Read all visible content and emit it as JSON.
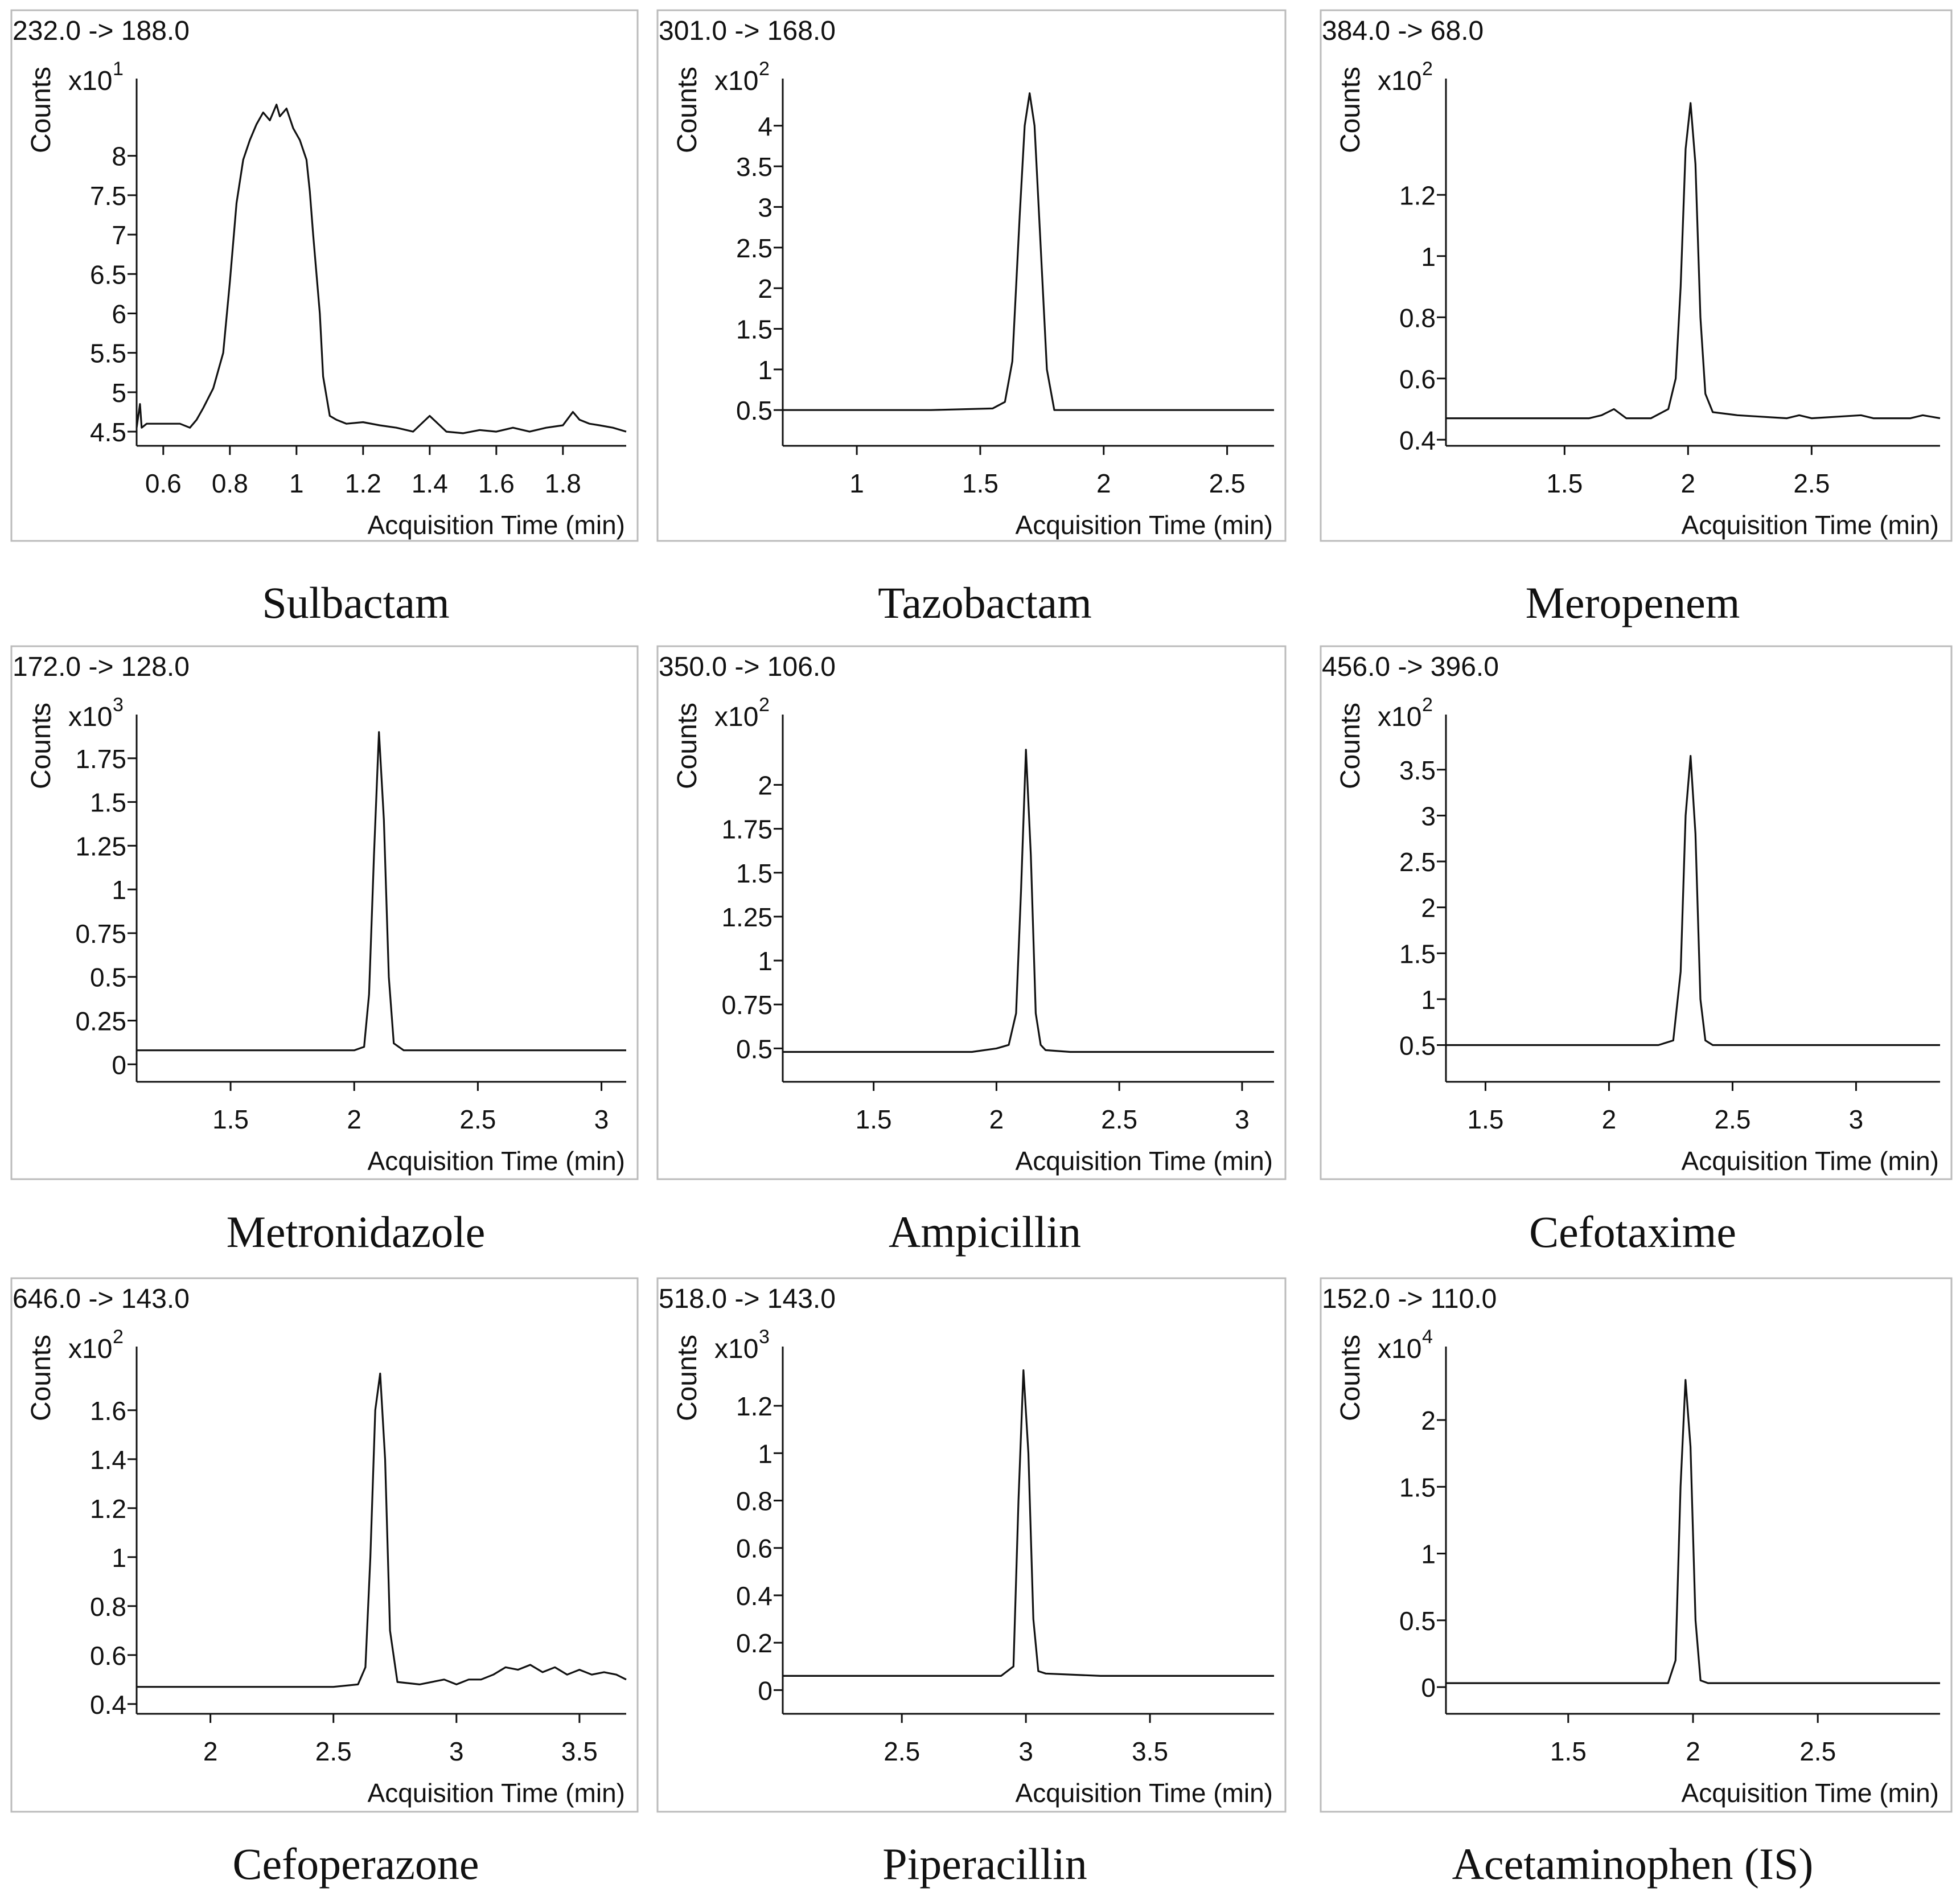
{
  "colors": {
    "line": "#111111",
    "frame": "#bbbbbb",
    "background": "#ffffff"
  },
  "chart_data": [
    {
      "type": "line",
      "name": "Sulbactam",
      "transition": "232.0 -> 188.0",
      "ylabel": "Counts",
      "xlabel": "Acquisition Time (min)",
      "scale_base": "x10",
      "scale_exp": "1",
      "xlim": [
        0.52,
        1.99
      ],
      "ylim": [
        4.32,
        8.98
      ],
      "xticks": [
        0.6,
        0.8,
        1,
        1.2,
        1.4,
        1.6,
        1.8
      ],
      "xtick_labels": [
        "0.6",
        "0.8",
        "1",
        "1.2",
        "1.4",
        "1.6",
        "1.8"
      ],
      "yticks": [
        4.5,
        5,
        5.5,
        6,
        6.5,
        7,
        7.5,
        8
      ],
      "ytick_labels": [
        "4.5",
        "5",
        "5.5",
        "6",
        "6.5",
        "7",
        "7.5",
        "8"
      ],
      "x": [
        0.52,
        0.53,
        0.535,
        0.55,
        0.6,
        0.65,
        0.68,
        0.7,
        0.72,
        0.75,
        0.78,
        0.8,
        0.82,
        0.84,
        0.86,
        0.88,
        0.9,
        0.92,
        0.94,
        0.95,
        0.97,
        0.99,
        1.01,
        1.03,
        1.04,
        1.05,
        1.07,
        1.08,
        1.1,
        1.12,
        1.15,
        1.2,
        1.25,
        1.3,
        1.35,
        1.4,
        1.45,
        1.5,
        1.55,
        1.6,
        1.65,
        1.7,
        1.75,
        1.8,
        1.83,
        1.85,
        1.88,
        1.91,
        1.95,
        1.99
      ],
      "y": [
        4.55,
        4.85,
        4.55,
        4.6,
        4.6,
        4.6,
        4.55,
        4.65,
        4.8,
        5.05,
        5.5,
        6.4,
        7.4,
        7.95,
        8.2,
        8.4,
        8.55,
        8.45,
        8.65,
        8.5,
        8.6,
        8.35,
        8.2,
        7.95,
        7.55,
        7.0,
        6.0,
        5.2,
        4.7,
        4.65,
        4.6,
        4.62,
        4.58,
        4.55,
        4.5,
        4.7,
        4.5,
        4.48,
        4.52,
        4.5,
        4.55,
        4.5,
        4.55,
        4.58,
        4.75,
        4.65,
        4.6,
        4.58,
        4.55,
        4.5
      ]
    },
    {
      "type": "line",
      "name": "Tazobactam",
      "transition": "301.0 -> 168.0",
      "ylabel": "Counts",
      "xlabel": "Acquisition Time (min)",
      "scale_base": "x10",
      "scale_exp": "2",
      "xlim": [
        0.7,
        2.69
      ],
      "ylim": [
        0.06,
        4.58
      ],
      "xticks": [
        1,
        1.5,
        2,
        2.5
      ],
      "xtick_labels": [
        "1",
        "1.5",
        "2",
        "2.5"
      ],
      "yticks": [
        0.5,
        1,
        1.5,
        2,
        2.5,
        3,
        3.5,
        4
      ],
      "ytick_labels": [
        "0.5",
        "1",
        "1.5",
        "2",
        "2.5",
        "3",
        "3.5",
        "4"
      ],
      "x": [
        0.7,
        1.0,
        1.3,
        1.55,
        1.6,
        1.63,
        1.66,
        1.68,
        1.7,
        1.72,
        1.74,
        1.77,
        1.8,
        2.0,
        2.69
      ],
      "y": [
        0.5,
        0.5,
        0.5,
        0.52,
        0.6,
        1.1,
        2.9,
        4.0,
        4.4,
        4.0,
        2.8,
        1.0,
        0.5,
        0.5,
        0.5
      ]
    },
    {
      "type": "line",
      "name": "Meropenem",
      "transition": "384.0 -> 68.0",
      "ylabel": "Counts",
      "xlabel": "Acquisition Time (min)",
      "scale_base": "x10",
      "scale_exp": "2",
      "xlim": [
        1.02,
        3.02
      ],
      "ylim": [
        0.38,
        1.58
      ],
      "xticks": [
        1.5,
        2,
        2.5
      ],
      "xtick_labels": [
        "1.5",
        "2",
        "2.5"
      ],
      "yticks": [
        0.4,
        0.6,
        0.8,
        1,
        1.2
      ],
      "ytick_labels": [
        "0.4",
        "0.6",
        "0.8",
        "1",
        "1.2"
      ],
      "x": [
        1.02,
        1.3,
        1.6,
        1.65,
        1.7,
        1.75,
        1.85,
        1.92,
        1.95,
        1.97,
        1.99,
        2.01,
        2.03,
        2.05,
        2.07,
        2.1,
        2.2,
        2.4,
        2.45,
        2.5,
        2.7,
        2.75,
        2.8,
        2.9,
        2.95,
        3.02
      ],
      "y": [
        0.47,
        0.47,
        0.47,
        0.48,
        0.5,
        0.47,
        0.47,
        0.5,
        0.6,
        0.9,
        1.35,
        1.5,
        1.3,
        0.8,
        0.55,
        0.49,
        0.48,
        0.47,
        0.48,
        0.47,
        0.48,
        0.47,
        0.47,
        0.47,
        0.48,
        0.47
      ]
    },
    {
      "type": "line",
      "name": "Metronidazole",
      "transition": "172.0 -> 128.0",
      "ylabel": "Counts",
      "xlabel": "Acquisition Time (min)",
      "scale_base": "x10",
      "scale_exp": "3",
      "xlim": [
        1.12,
        3.1
      ],
      "ylim": [
        -0.1,
        2.0
      ],
      "xticks": [
        1.5,
        2,
        2.5,
        3
      ],
      "xtick_labels": [
        "1.5",
        "2",
        "2.5",
        "3"
      ],
      "yticks": [
        0,
        0.25,
        0.5,
        0.75,
        1,
        1.25,
        1.5,
        1.75
      ],
      "ytick_labels": [
        "0",
        "0.25",
        "0.5",
        "0.75",
        "1",
        "1.25",
        "1.5",
        "1.75"
      ],
      "x": [
        1.12,
        1.6,
        2.0,
        2.04,
        2.06,
        2.08,
        2.1,
        2.12,
        2.14,
        2.16,
        2.2,
        2.6,
        3.1
      ],
      "y": [
        0.08,
        0.08,
        0.08,
        0.1,
        0.4,
        1.2,
        1.9,
        1.4,
        0.5,
        0.12,
        0.08,
        0.08,
        0.08
      ]
    },
    {
      "type": "line",
      "name": "Ampicillin",
      "transition": "350.0 -> 106.0",
      "ylabel": "Counts",
      "xlabel": "Acquisition Time (min)",
      "scale_base": "x10",
      "scale_exp": "2",
      "xlim": [
        1.13,
        3.13
      ],
      "ylim": [
        0.31,
        2.4
      ],
      "xticks": [
        1.5,
        2,
        2.5,
        3
      ],
      "xtick_labels": [
        "1.5",
        "2",
        "2.5",
        "3"
      ],
      "yticks": [
        0.5,
        0.75,
        1,
        1.25,
        1.5,
        1.75,
        2
      ],
      "ytick_labels": [
        "0.5",
        "0.75",
        "1",
        "1.25",
        "1.5",
        "1.75",
        "2"
      ],
      "x": [
        1.13,
        1.5,
        1.9,
        2.0,
        2.05,
        2.08,
        2.1,
        2.12,
        2.14,
        2.16,
        2.18,
        2.2,
        2.3,
        2.6,
        3.13
      ],
      "y": [
        0.48,
        0.48,
        0.48,
        0.5,
        0.52,
        0.7,
        1.4,
        2.2,
        1.6,
        0.7,
        0.52,
        0.49,
        0.48,
        0.48,
        0.48
      ]
    },
    {
      "type": "line",
      "name": "Cefotaxime",
      "transition": "456.0 -> 396.0",
      "ylabel": "Counts",
      "xlabel": "Acquisition Time (min)",
      "scale_base": "x10",
      "scale_exp": "2",
      "xlim": [
        1.34,
        3.34
      ],
      "ylim": [
        0.1,
        4.1
      ],
      "xticks": [
        1.5,
        2,
        2.5,
        3
      ],
      "xtick_labels": [
        "1.5",
        "2",
        "2.5",
        "3"
      ],
      "yticks": [
        0.5,
        1,
        1.5,
        2,
        2.5,
        3,
        3.5
      ],
      "ytick_labels": [
        "0.5",
        "1",
        "1.5",
        "2",
        "2.5",
        "3",
        "3.5"
      ],
      "x": [
        1.34,
        1.8,
        2.2,
        2.26,
        2.29,
        2.31,
        2.33,
        2.35,
        2.37,
        2.39,
        2.42,
        2.8,
        3.34
      ],
      "y": [
        0.5,
        0.5,
        0.5,
        0.55,
        1.3,
        3.0,
        3.65,
        2.8,
        1.0,
        0.55,
        0.5,
        0.5,
        0.5
      ]
    },
    {
      "type": "line",
      "name": "Cefoperazone",
      "transition": "646.0 -> 143.0",
      "ylabel": "Counts",
      "xlabel": "Acquisition Time (min)",
      "scale_base": "x10",
      "scale_exp": "2",
      "xlim": [
        1.7,
        3.69
      ],
      "ylim": [
        0.36,
        1.86
      ],
      "xticks": [
        2,
        2.5,
        3,
        3.5
      ],
      "xtick_labels": [
        "2",
        "2.5",
        "3",
        "3.5"
      ],
      "yticks": [
        0.4,
        0.6,
        0.8,
        1,
        1.2,
        1.4,
        1.6
      ],
      "ytick_labels": [
        "0.4",
        "0.6",
        "0.8",
        "1",
        "1.2",
        "1.4",
        "1.6"
      ],
      "x": [
        1.7,
        2.2,
        2.5,
        2.6,
        2.63,
        2.65,
        2.67,
        2.69,
        2.71,
        2.73,
        2.76,
        2.85,
        2.95,
        3.0,
        3.05,
        3.1,
        3.15,
        3.2,
        3.25,
        3.3,
        3.35,
        3.4,
        3.45,
        3.5,
        3.55,
        3.6,
        3.65,
        3.69
      ],
      "y": [
        0.47,
        0.47,
        0.47,
        0.48,
        0.55,
        1.0,
        1.6,
        1.75,
        1.4,
        0.7,
        0.49,
        0.48,
        0.5,
        0.48,
        0.5,
        0.5,
        0.52,
        0.55,
        0.54,
        0.56,
        0.53,
        0.55,
        0.52,
        0.54,
        0.52,
        0.53,
        0.52,
        0.5
      ]
    },
    {
      "type": "line",
      "name": "Piperacillin",
      "transition": "518.0 -> 143.0",
      "ylabel": "Counts",
      "xlabel": "Acquisition Time (min)",
      "scale_base": "x10",
      "scale_exp": "3",
      "xlim": [
        2.02,
        4.0
      ],
      "ylim": [
        -0.1,
        1.45
      ],
      "xticks": [
        2.5,
        3,
        3.5
      ],
      "xtick_labels": [
        "2.5",
        "3",
        "3.5"
      ],
      "yticks": [
        0,
        0.2,
        0.4,
        0.6,
        0.8,
        1,
        1.2
      ],
      "ytick_labels": [
        "0",
        "0.2",
        "0.4",
        "0.6",
        "0.8",
        "1",
        "1.2"
      ],
      "x": [
        2.02,
        2.5,
        2.9,
        2.95,
        2.97,
        2.99,
        3.01,
        3.03,
        3.05,
        3.08,
        3.3,
        3.6,
        4.0
      ],
      "y": [
        0.06,
        0.06,
        0.06,
        0.1,
        0.8,
        1.35,
        1.0,
        0.3,
        0.08,
        0.07,
        0.06,
        0.06,
        0.06
      ]
    },
    {
      "type": "line",
      "name": "Acetaminophen (IS)",
      "transition": "152.0 -> 110.0",
      "ylabel": "Counts",
      "xlabel": "Acquisition Time (min)",
      "scale_base": "x10",
      "scale_exp": "4",
      "xlim": [
        1.01,
        2.99
      ],
      "ylim": [
        -0.2,
        2.55
      ],
      "xticks": [
        1.5,
        2,
        2.5
      ],
      "xtick_labels": [
        "1.5",
        "2",
        "2.5"
      ],
      "yticks": [
        0,
        0.5,
        1,
        1.5,
        2
      ],
      "ytick_labels": [
        "0",
        "0.5",
        "1",
        "1.5",
        "2"
      ],
      "x": [
        1.01,
        1.5,
        1.9,
        1.93,
        1.95,
        1.97,
        1.99,
        2.01,
        2.03,
        2.06,
        2.4,
        2.99
      ],
      "y": [
        0.03,
        0.03,
        0.03,
        0.2,
        1.5,
        2.3,
        1.8,
        0.5,
        0.05,
        0.03,
        0.03,
        0.03
      ]
    }
  ]
}
